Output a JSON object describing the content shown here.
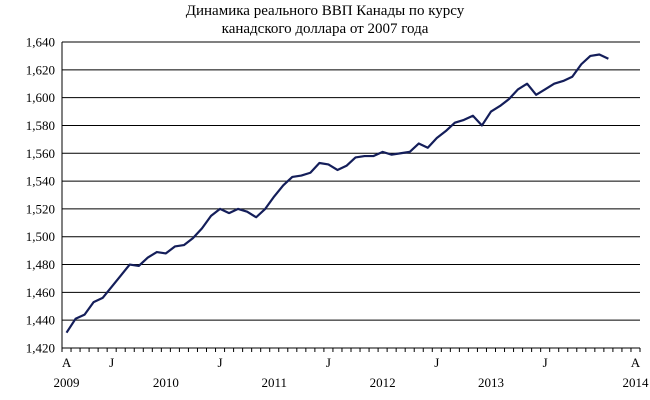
{
  "chart_data": {
    "type": "line",
    "title": [
      "Динамика реального ВВП Канады  по курсу",
      "канадского доллара от 2007 года"
    ],
    "xlabel": "",
    "ylabel": "",
    "ylim": [
      1420,
      1640
    ],
    "y_ticks": [
      "1,420",
      "1,440",
      "1,460",
      "1,480",
      "1,500",
      "1,520",
      "1,540",
      "1,560",
      "1,580",
      "1,600",
      "1,620",
      "1,640"
    ],
    "x_month_ticks": [
      {
        "label": "A",
        "index": 0
      },
      {
        "label": "J",
        "index": 5
      },
      {
        "label": "J",
        "index": 17
      },
      {
        "label": "J",
        "index": 29
      },
      {
        "label": "J",
        "index": 41
      },
      {
        "label": "J",
        "index": 53
      },
      {
        "label": "A",
        "index": 63
      }
    ],
    "x_year_ticks": [
      {
        "label": "2009",
        "index": 0
      },
      {
        "label": "2010",
        "index": 11
      },
      {
        "label": "2011",
        "index": 23
      },
      {
        "label": "2012",
        "index": 35
      },
      {
        "label": "2013",
        "index": 47
      },
      {
        "label": "2014",
        "index": 63
      }
    ],
    "grid": "horizontal",
    "legend": "none",
    "series": [
      {
        "color": "#141e5a",
        "values": [
          1431,
          1441,
          1444,
          1453,
          1456,
          1464,
          1472,
          1480,
          1479,
          1485,
          1489,
          1488,
          1493,
          1494,
          1499,
          1506,
          1515,
          1520,
          1517,
          1520,
          1518,
          1514,
          1520,
          1529,
          1537,
          1543,
          1544,
          1546,
          1553,
          1552,
          1548,
          1551,
          1557,
          1558,
          1558,
          1561,
          1559,
          1560,
          1561,
          1567,
          1564,
          1571,
          1576,
          1582,
          1584,
          1587,
          1580,
          1590,
          1594,
          1599,
          1606,
          1610,
          1602,
          1606,
          1610,
          1612,
          1615,
          1624,
          1630,
          1631,
          1628
        ]
      }
    ]
  }
}
